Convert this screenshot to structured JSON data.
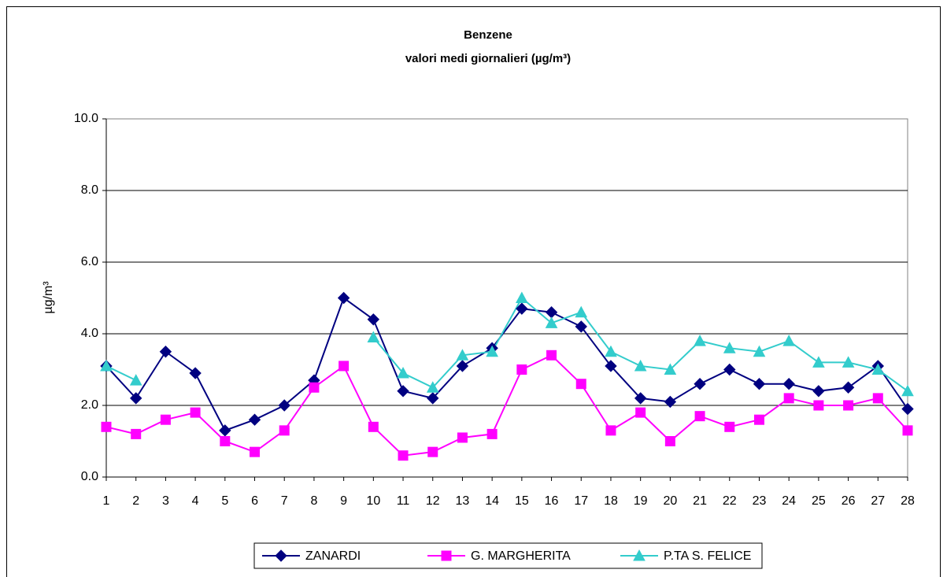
{
  "chart_data": {
    "type": "line",
    "title": "Benzene",
    "subtitle": "valori medi giornalieri (µg/m³)",
    "y_label": "µg/m³",
    "x": [
      1,
      2,
      3,
      4,
      5,
      6,
      7,
      8,
      9,
      10,
      11,
      12,
      13,
      14,
      15,
      16,
      17,
      18,
      19,
      20,
      21,
      22,
      23,
      24,
      25,
      26,
      27,
      28
    ],
    "xlim": [
      1,
      28
    ],
    "xticks": [
      1,
      2,
      3,
      4,
      5,
      6,
      7,
      8,
      9,
      10,
      11,
      12,
      13,
      14,
      15,
      16,
      17,
      18,
      19,
      20,
      21,
      22,
      23,
      24,
      25,
      26,
      27,
      28
    ],
    "ylim": [
      0,
      10
    ],
    "yticks": [
      {
        "value": 0,
        "label": "0.0"
      },
      {
        "value": 2,
        "label": "2.0"
      },
      {
        "value": 4,
        "label": "4.0"
      },
      {
        "value": 6,
        "label": "6.0"
      },
      {
        "value": 8,
        "label": "8.0"
      },
      {
        "value": 10,
        "label": "10.0"
      }
    ],
    "grid": true,
    "legend": "bottom",
    "series": [
      {
        "name": "ZANARDI",
        "color": "#000080",
        "marker": "diamond",
        "values": [
          3.1,
          2.2,
          3.5,
          2.9,
          1.3,
          1.6,
          2.0,
          2.7,
          5.0,
          4.4,
          2.4,
          2.2,
          3.1,
          3.6,
          4.7,
          4.6,
          4.2,
          3.1,
          2.2,
          2.1,
          2.6,
          3.0,
          2.6,
          2.6,
          2.4,
          2.5,
          3.1,
          1.9
        ]
      },
      {
        "name": "G. MARGHERITA",
        "color": "#ff00ff",
        "marker": "square",
        "values": [
          1.4,
          1.2,
          1.6,
          1.8,
          1.0,
          0.7,
          1.3,
          2.5,
          3.1,
          1.4,
          0.6,
          0.7,
          1.1,
          1.2,
          3.0,
          3.4,
          2.6,
          1.3,
          1.8,
          1.0,
          1.7,
          1.4,
          1.6,
          2.2,
          2.0,
          2.0,
          2.2,
          1.3
        ]
      },
      {
        "name": "P.TA S. FELICE",
        "color": "#33cccc",
        "marker": "triangle",
        "values": [
          3.1,
          2.7,
          null,
          null,
          null,
          null,
          null,
          null,
          null,
          3.9,
          2.9,
          2.5,
          3.4,
          3.5,
          5.0,
          4.3,
          4.6,
          3.5,
          3.1,
          3.0,
          3.8,
          3.6,
          3.5,
          3.8,
          3.2,
          3.2,
          3.0,
          2.4
        ]
      }
    ]
  }
}
